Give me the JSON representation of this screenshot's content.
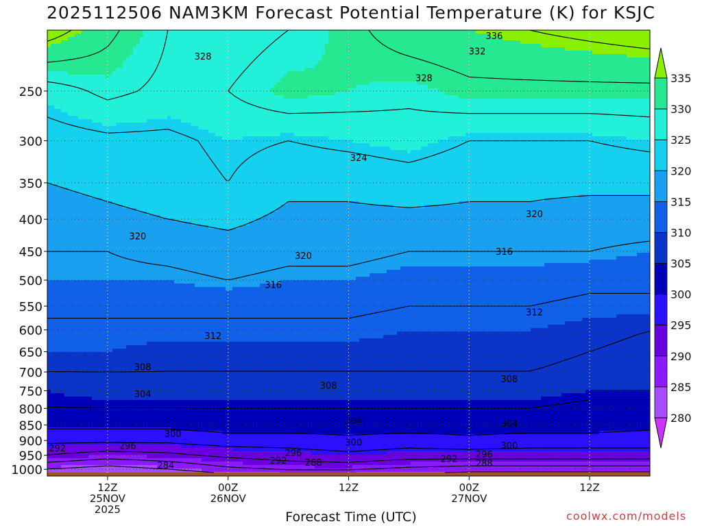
{
  "title": "2025112506 NAM3KM Forecast Potential Temperature (K) for KSJC",
  "xlabel": "Forecast Time (UTC)",
  "credit": "coolwx.com/models",
  "chart_data": {
    "type": "heatmap",
    "title": "2025112506 NAM3KM Forecast Potential Temperature (K) for KSJC",
    "xlabel": "Forecast Time (UTC)",
    "ylabel": "",
    "x_range_hours": [
      0,
      60
    ],
    "y_range_hPa": [
      200,
      1025
    ],
    "y_scale": "log",
    "y_ticks": [
      250,
      300,
      350,
      400,
      450,
      500,
      550,
      600,
      650,
      700,
      750,
      800,
      850,
      900,
      950,
      1000
    ],
    "x_ticks": [
      {
        "hour": 6,
        "lines": [
          "12Z",
          "25NOV",
          "2025"
        ]
      },
      {
        "hour": 18,
        "lines": [
          "00Z",
          "26NOV"
        ]
      },
      {
        "hour": 30,
        "lines": [
          "12Z"
        ]
      },
      {
        "hour": 42,
        "lines": [
          "00Z",
          "27NOV"
        ]
      },
      {
        "hour": 54,
        "lines": [
          "12Z"
        ]
      }
    ],
    "grid": true,
    "colorbar": {
      "placement": "right",
      "levels": [
        280,
        285,
        290,
        295,
        300,
        305,
        310,
        315,
        320,
        325,
        330,
        335
      ],
      "colors": [
        "#cc33ff",
        "#a64dff",
        "#8a1aff",
        "#6a00e0",
        "#2a10ff",
        "#0000b8",
        "#0a35c8",
        "#1060e8",
        "#1aa0f0",
        "#16d0f0",
        "#22f0d8",
        "#25e890",
        "#33d43a",
        "#88f000"
      ]
    },
    "hours": [
      0,
      6,
      12,
      18,
      24,
      30,
      36,
      42,
      48,
      54,
      60
    ],
    "pressures": [
      200,
      250,
      300,
      350,
      400,
      450,
      500,
      550,
      600,
      650,
      700,
      750,
      800,
      850,
      900,
      950,
      1000,
      1025
    ],
    "theta": [
      [
        338,
        333,
        328,
        326,
        328,
        331,
        334,
        335,
        336,
        337,
        338
      ],
      [
        326,
        329,
        327,
        328,
        331,
        330,
        329,
        331,
        331,
        331,
        331
      ],
      [
        322,
        323,
        323,
        325,
        324,
        325,
        326,
        324,
        324,
        324,
        325
      ],
      [
        320,
        321,
        322,
        324,
        321,
        321,
        322,
        321,
        321,
        321,
        321
      ],
      [
        318,
        319,
        320,
        321,
        319,
        319,
        319,
        319,
        319,
        318,
        318
      ],
      [
        316,
        316,
        317,
        318,
        317,
        317,
        316,
        316,
        316,
        316,
        315
      ],
      [
        315,
        315,
        315,
        316,
        315,
        315,
        314,
        314,
        314,
        313,
        313
      ],
      [
        313,
        313,
        313,
        313,
        313,
        313,
        312,
        312,
        312,
        311,
        311
      ],
      [
        311,
        311,
        311,
        311,
        311,
        311,
        310,
        310,
        310,
        309,
        308
      ],
      [
        310,
        310,
        309,
        309,
        309,
        309,
        309,
        309,
        309,
        308,
        307
      ],
      [
        308,
        308,
        308,
        308,
        308,
        308,
        308,
        308,
        308,
        307,
        306
      ],
      [
        305,
        306,
        306,
        306,
        306,
        306,
        306,
        306,
        306,
        305,
        305
      ],
      [
        304,
        304,
        304,
        304,
        304,
        304,
        304,
        304,
        304,
        303,
        303
      ],
      [
        301,
        301,
        301,
        302,
        302,
        302,
        302,
        302,
        302,
        302,
        301
      ],
      [
        297,
        297,
        297,
        298,
        298,
        299,
        298,
        299,
        298,
        298,
        298
      ],
      [
        292,
        290,
        291,
        293,
        294,
        295,
        294,
        294,
        294,
        294,
        294
      ],
      [
        284,
        282,
        284,
        287,
        289,
        289,
        287,
        286,
        286,
        286,
        286
      ],
      [
        279,
        279,
        280,
        282,
        283,
        283,
        282,
        281,
        281,
        281,
        281
      ]
    ],
    "contour_levels": [
      284,
      288,
      292,
      296,
      300,
      304,
      308,
      312,
      316,
      320,
      324,
      328,
      332,
      336
    ],
    "contour_labels": [
      {
        "text": "336",
        "hour": 44.5,
        "p": 204
      },
      {
        "text": "332",
        "hour": 42.8,
        "p": 216
      },
      {
        "text": "328",
        "hour": 15.5,
        "p": 220
      },
      {
        "text": "328",
        "hour": 37.5,
        "p": 238
      },
      {
        "text": "324",
        "hour": 31.0,
        "p": 319
      },
      {
        "text": "320",
        "hour": 9.0,
        "p": 425
      },
      {
        "text": "320",
        "hour": 25.5,
        "p": 457
      },
      {
        "text": "320",
        "hour": 48.5,
        "p": 392
      },
      {
        "text": "316",
        "hour": 22.5,
        "p": 508
      },
      {
        "text": "316",
        "hour": 45.5,
        "p": 450
      },
      {
        "text": "312",
        "hour": 16.5,
        "p": 613
      },
      {
        "text": "312",
        "hour": 48.5,
        "p": 562
      },
      {
        "text": "308",
        "hour": 9.5,
        "p": 687
      },
      {
        "text": "308",
        "hour": 28.0,
        "p": 735
      },
      {
        "text": "308",
        "hour": 46.0,
        "p": 718
      },
      {
        "text": "304",
        "hour": 9.5,
        "p": 758
      },
      {
        "text": "304",
        "hour": 30.5,
        "p": 836
      },
      {
        "text": "304",
        "hour": 46.0,
        "p": 845
      },
      {
        "text": "300",
        "hour": 12.5,
        "p": 877
      },
      {
        "text": "300",
        "hour": 30.5,
        "p": 905
      },
      {
        "text": "300",
        "hour": 46.0,
        "p": 916
      },
      {
        "text": "296",
        "hour": 8.0,
        "p": 917
      },
      {
        "text": "296",
        "hour": 24.5,
        "p": 941
      },
      {
        "text": "296",
        "hour": 43.5,
        "p": 946
      },
      {
        "text": "292",
        "hour": 1.0,
        "p": 925
      },
      {
        "text": "292",
        "hour": 23.0,
        "p": 967
      },
      {
        "text": "292",
        "hour": 40.0,
        "p": 962
      },
      {
        "text": "288",
        "hour": 26.5,
        "p": 975
      },
      {
        "text": "288",
        "hour": 43.5,
        "p": 977
      },
      {
        "text": "284",
        "hour": 11.8,
        "p": 985
      }
    ],
    "surface": {
      "color": "#a0522d",
      "p": 1012
    }
  }
}
